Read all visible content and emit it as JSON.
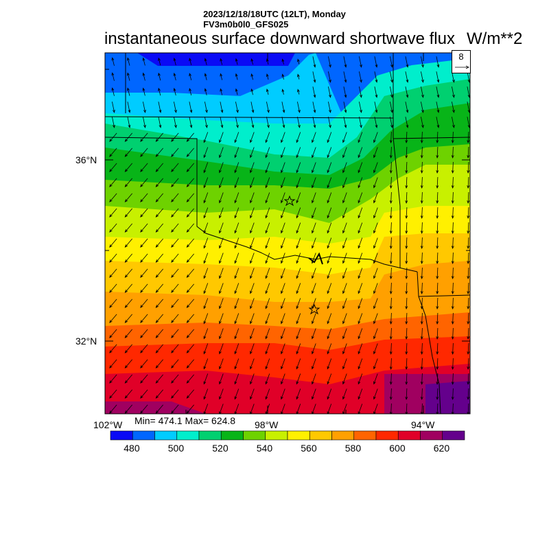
{
  "header": {
    "datetime": "2023/12/18/18UTC (12LT), Monday",
    "model": "FV3m0b0l0_GFS025",
    "title": "instantaneous surface downward shortwave flux",
    "units": "W/m**2"
  },
  "reference_vector": {
    "label": "8"
  },
  "axes": {
    "lat_labels": [
      "36°N",
      "32°N"
    ],
    "lon_labels": [
      "102°W",
      "98°W",
      "94°W"
    ]
  },
  "stats": {
    "min_max": "Min= 474.1 Max= 624.8",
    "min": 474.1,
    "max": 624.8
  },
  "colorbar": {
    "colors": [
      "#0a0af5",
      "#0066ff",
      "#00ccff",
      "#00eecc",
      "#00d070",
      "#08b418",
      "#6ed200",
      "#c8f000",
      "#fff000",
      "#ffc800",
      "#ffa000",
      "#ff6400",
      "#ff2800",
      "#e00028",
      "#a00060",
      "#64008c"
    ],
    "labels": [
      "480",
      "500",
      "520",
      "540",
      "560",
      "580",
      "600",
      "620"
    ]
  },
  "markers": [
    {
      "type": "star",
      "name": "star-marker-north"
    },
    {
      "type": "star",
      "name": "star-marker-south"
    }
  ]
}
